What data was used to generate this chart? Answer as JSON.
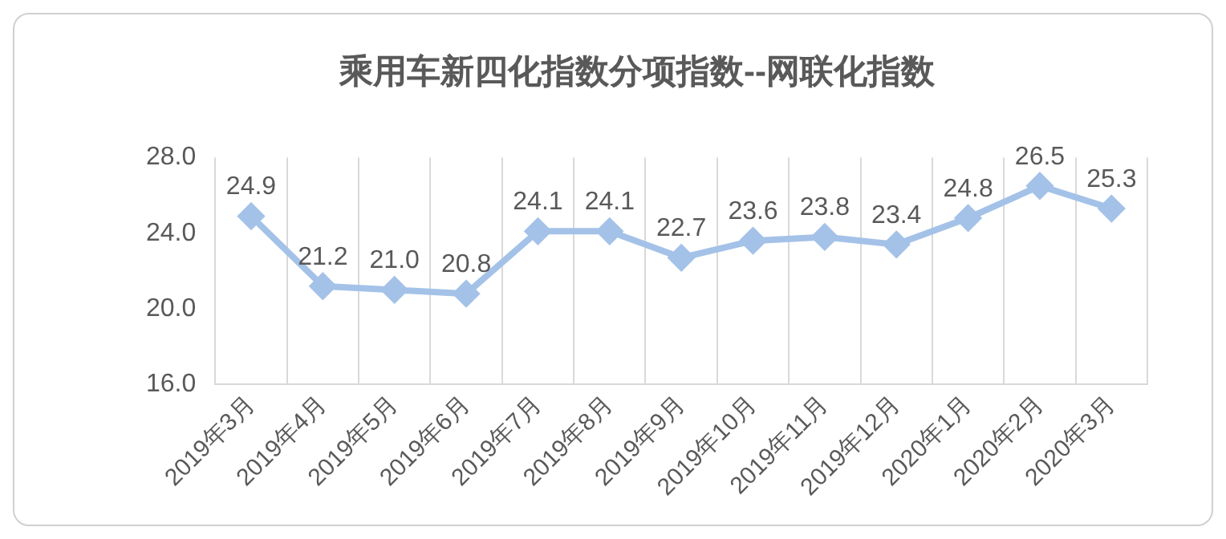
{
  "chart_data": {
    "type": "line",
    "title": "乘用车新四化指数分项指数--网联化指数",
    "categories": [
      "2019年3月",
      "2019年4月",
      "2019年5月",
      "2019年6月",
      "2019年7月",
      "2019年8月",
      "2019年9月",
      "2019年10月",
      "2019年11月",
      "2019年12月",
      "2020年1月",
      "2020年2月",
      "2020年3月"
    ],
    "values": [
      24.9,
      21.2,
      21.0,
      20.8,
      24.1,
      24.1,
      22.7,
      23.6,
      23.8,
      23.4,
      24.8,
      26.5,
      25.3
    ],
    "color": "#a4c2e8",
    "ylim": [
      16,
      28
    ],
    "yticks": [
      {
        "value": 16,
        "label": "16.0"
      },
      {
        "value": 20,
        "label": "20.0"
      },
      {
        "value": 24,
        "label": "24.0"
      },
      {
        "value": 28,
        "label": "28.0"
      }
    ],
    "value_labels": [
      "24.9",
      "21.2",
      "21.0",
      "20.8",
      "24.1",
      "24.1",
      "22.7",
      "23.6",
      "23.8",
      "23.4",
      "24.8",
      "26.5",
      "25.3"
    ],
    "grid": "x",
    "marker": "diamond",
    "line_style": "solid",
    "legend": false
  }
}
